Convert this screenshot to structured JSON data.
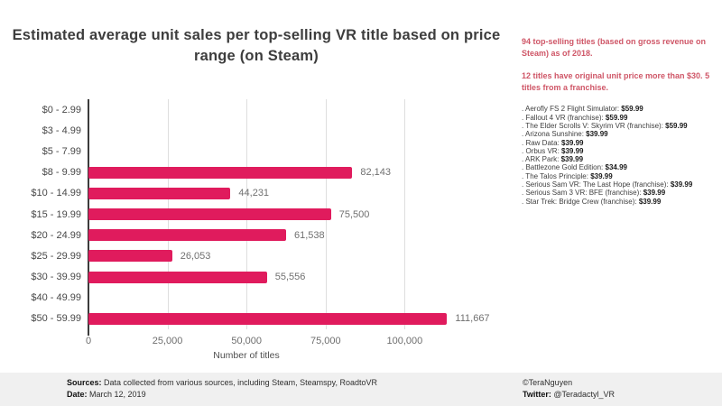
{
  "title": "Estimated average unit sales per top-selling VR title based on price range (on Steam)",
  "chart_data": {
    "type": "bar",
    "orientation": "horizontal",
    "title": "Estimated average unit sales per top-selling VR title based on price range (on Steam)",
    "categories": [
      "$0 - 2.99",
      "$3 - 4.99",
      "$5 - 7.99",
      "$8 - 9.99",
      "$10 - 14.99",
      "$15 - 19.99",
      "$20 - 24.99",
      "$25 - 29.99",
      "$30 - 39.99",
      "$40 - 49.99",
      "$50 - 59.99"
    ],
    "values": [
      0,
      0,
      0,
      82143,
      44231,
      75500,
      61538,
      26053,
      55556,
      0,
      111667
    ],
    "value_labels": [
      "",
      "",
      "",
      "82,143",
      "44,231",
      "75,500",
      "61,538",
      "26,053",
      "55,556",
      "",
      "111,667"
    ],
    "xlabel": "Number of titles",
    "ylabel": "",
    "xlim": [
      0,
      127000
    ],
    "ticks": [
      0,
      25000,
      50000,
      75000,
      100000
    ],
    "tick_labels": [
      "0",
      "25,000",
      "50,000",
      "75,000",
      "100,000"
    ],
    "grid": true,
    "legend": false,
    "bar_color": "#e01b5d"
  },
  "side_panel": {
    "accent_color": "#cf5667",
    "note1": "94 top-selling titles (based on gross revenue on Steam) as of 2018.",
    "note2": "12 titles have original unit price more than $30. 5 titles from a franchise.",
    "bullet": ". ",
    "titles": [
      {
        "name": "Aerofly FS 2 Flight Simulator",
        "price": "$59.99"
      },
      {
        "name": "Fallout 4 VR (franchise)",
        "price": "$59.99"
      },
      {
        "name": "The Elder Scrolls V: Skyrim VR (franchise)",
        "price": "$59.99"
      },
      {
        "name": "Arizona Sunshine",
        "price": "$39.99"
      },
      {
        "name": "Raw Data",
        "price": "$39.99"
      },
      {
        "name": "Orbus VR",
        "price": "$39.99"
      },
      {
        "name": "ARK Park",
        "price": "$39.99"
      },
      {
        "name": "Battlezone Gold Edition",
        "price": "$34.99"
      },
      {
        "name": "The Talos Principle",
        "price": "$39.99"
      },
      {
        "name": "Serious Sam VR: The Last Hope (franchise)",
        "price": "$39.99"
      },
      {
        "name": "Serious Sam 3 VR: BFE (franchise)",
        "price": "$39.99"
      },
      {
        "name": "Star Trek: Bridge Crew (franchise)",
        "price": "$39.99"
      }
    ]
  },
  "footer": {
    "sources_label": "Sources:",
    "sources_text": "Data collected from various sources, including Steam, Steamspy, RoadtoVR",
    "date_label": "Date:",
    "date_text": "March 12, 2019",
    "credit": "©TeraNguyen",
    "twitter_label": "Twitter:",
    "twitter_handle": "@Teradactyl_VR"
  }
}
